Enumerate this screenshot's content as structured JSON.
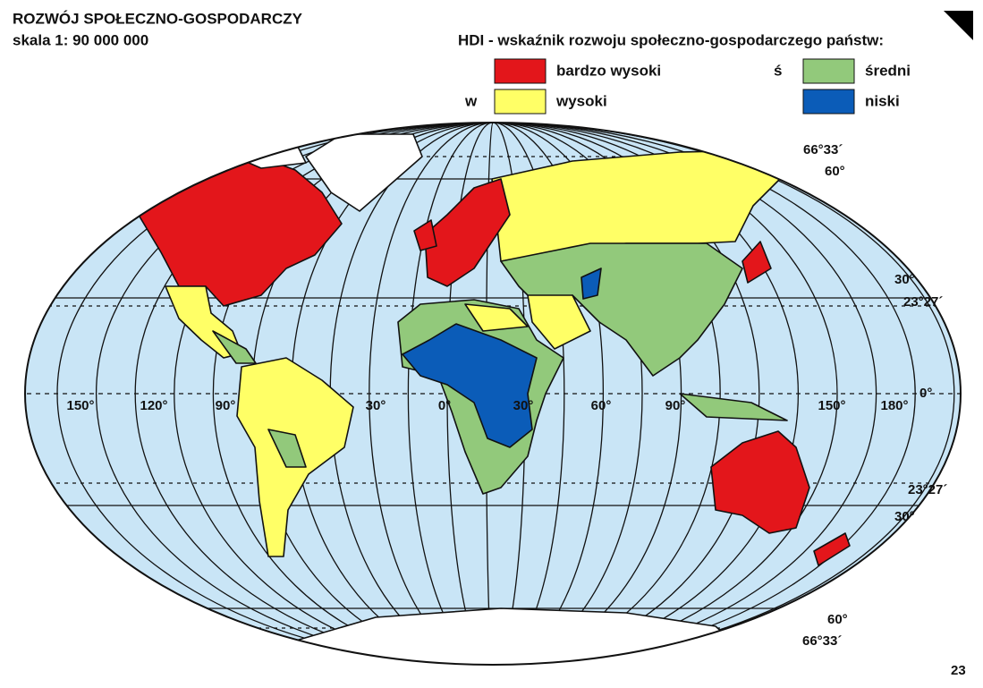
{
  "header": {
    "title": "ROZWÓJ SPOŁECZNO-GOSPODARCZY",
    "scale": "skala 1: 90 000 000"
  },
  "legend": {
    "title": "HDI - wskaźnik rozwoju społeczno-gospodarczego państw:",
    "items": [
      {
        "label": "bardzo wysoki",
        "color": "#e3161b"
      },
      {
        "letter": "w",
        "label": "wysoki",
        "color": "#ffff66"
      },
      {
        "letter": "ś",
        "label": "średni",
        "color": "#92c97b"
      },
      {
        "label": "niski",
        "color": "#0b5cb8"
      }
    ]
  },
  "map": {
    "latitude_labels": [
      "66°33´",
      "60°",
      "30°",
      "23°27´",
      "0°",
      "23°27´",
      "30°",
      "60°",
      "66°33´"
    ],
    "longitude_labels": [
      "150°",
      "120°",
      "90°",
      "30°",
      "0°",
      "30°",
      "60°",
      "90°",
      "150°",
      "180°"
    ]
  },
  "page_number": "23"
}
